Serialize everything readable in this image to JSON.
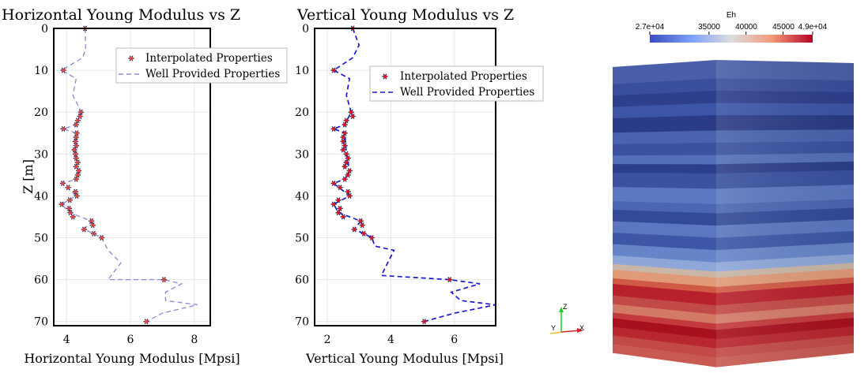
{
  "chart_data": [
    {
      "type": "scatter",
      "title": "Horizontal Young Modulus vs Z",
      "xlabel": "Horizontal Young Modulus [Mpsi]",
      "ylabel": "Z [m]",
      "xlim": [
        3.6,
        8.5
      ],
      "ylim": [
        71,
        0
      ],
      "y_inverted": true,
      "xticks": [
        4,
        6,
        8
      ],
      "yticks": [
        0,
        10,
        20,
        30,
        40,
        50,
        60,
        70
      ],
      "grid": true,
      "legend_position": "top-right",
      "colors": {
        "line": "#8a8ad4",
        "marker": "#e8412f",
        "marker_edge": "#2a2a60"
      },
      "series": [
        {
          "name": "Interpolated Properties",
          "style": "markers",
          "points": [
            [
              4.58,
              0
            ],
            [
              3.9,
              10
            ],
            [
              4.45,
              20
            ],
            [
              4.42,
              21
            ],
            [
              4.35,
              22
            ],
            [
              4.3,
              23
            ],
            [
              3.9,
              24
            ],
            [
              4.32,
              25
            ],
            [
              4.3,
              26
            ],
            [
              4.28,
              27
            ],
            [
              4.3,
              28
            ],
            [
              4.25,
              29
            ],
            [
              4.28,
              30
            ],
            [
              4.3,
              31
            ],
            [
              4.35,
              32
            ],
            [
              4.3,
              33
            ],
            [
              4.38,
              34
            ],
            [
              4.35,
              35
            ],
            [
              4.3,
              36
            ],
            [
              3.88,
              37
            ],
            [
              4.05,
              38
            ],
            [
              4.28,
              39
            ],
            [
              4.32,
              40
            ],
            [
              4.1,
              41
            ],
            [
              3.85,
              42
            ],
            [
              4.08,
              43
            ],
            [
              4.12,
              44
            ],
            [
              4.2,
              45
            ],
            [
              4.78,
              46
            ],
            [
              4.82,
              47
            ],
            [
              4.55,
              48
            ],
            [
              4.85,
              49
            ],
            [
              5.1,
              50
            ],
            [
              7.05,
              60
            ],
            [
              6.5,
              70
            ]
          ]
        },
        {
          "name": "Well Provided Properties",
          "style": "dashed-line",
          "points": [
            [
              4.58,
              0
            ],
            [
              4.6,
              5
            ],
            [
              4.5,
              7
            ],
            [
              3.85,
              10
            ],
            [
              4.3,
              12
            ],
            [
              4.2,
              16
            ],
            [
              4.4,
              19
            ],
            [
              4.45,
              20
            ],
            [
              4.3,
              23
            ],
            [
              3.9,
              24
            ],
            [
              4.3,
              25
            ],
            [
              4.28,
              30
            ],
            [
              4.38,
              34
            ],
            [
              4.3,
              36
            ],
            [
              3.88,
              37
            ],
            [
              4.3,
              40
            ],
            [
              3.85,
              42
            ],
            [
              4.1,
              44
            ],
            [
              4.78,
              46
            ],
            [
              4.55,
              48
            ],
            [
              4.85,
              49
            ],
            [
              5.1,
              50
            ],
            [
              5.3,
              53
            ],
            [
              5.7,
              56
            ],
            [
              5.3,
              60
            ],
            [
              7.05,
              60
            ],
            [
              7.6,
              61
            ],
            [
              7.1,
              63
            ],
            [
              7.1,
              65
            ],
            [
              8.1,
              66
            ],
            [
              7.0,
              68
            ],
            [
              6.5,
              70
            ]
          ]
        }
      ]
    },
    {
      "type": "scatter",
      "title": "Vertical Young Modulus vs Z",
      "xlabel": "Vertical Young Modulus [Mpsi]",
      "ylabel": "",
      "xlim": [
        1.6,
        7.3
      ],
      "ylim": [
        71,
        0
      ],
      "y_inverted": true,
      "xticks": [
        2,
        4,
        6
      ],
      "yticks": [
        0,
        10,
        20,
        30,
        40,
        50,
        60,
        70
      ],
      "grid": true,
      "legend_position": "top-right",
      "colors": {
        "line": "#1a1ad0",
        "marker": "#e8101a",
        "marker_edge": "#2a2a60"
      },
      "series": [
        {
          "name": "Interpolated Properties",
          "style": "markers",
          "points": [
            [
              2.8,
              0
            ],
            [
              2.2,
              10
            ],
            [
              2.75,
              20
            ],
            [
              2.8,
              21
            ],
            [
              2.6,
              22
            ],
            [
              2.55,
              23
            ],
            [
              2.2,
              24
            ],
            [
              2.55,
              25
            ],
            [
              2.5,
              26
            ],
            [
              2.5,
              27
            ],
            [
              2.55,
              28
            ],
            [
              2.5,
              29
            ],
            [
              2.6,
              30
            ],
            [
              2.65,
              31
            ],
            [
              2.6,
              32
            ],
            [
              2.55,
              33
            ],
            [
              2.7,
              34
            ],
            [
              2.65,
              35
            ],
            [
              2.55,
              36
            ],
            [
              2.2,
              37
            ],
            [
              2.4,
              38
            ],
            [
              2.65,
              39
            ],
            [
              2.7,
              40
            ],
            [
              2.35,
              41
            ],
            [
              2.2,
              42
            ],
            [
              2.4,
              43
            ],
            [
              2.35,
              44
            ],
            [
              2.5,
              45
            ],
            [
              3.05,
              46
            ],
            [
              3.1,
              47
            ],
            [
              2.85,
              48
            ],
            [
              3.15,
              49
            ],
            [
              3.4,
              50
            ],
            [
              5.85,
              60
            ],
            [
              5.05,
              70
            ]
          ]
        },
        {
          "name": "Well Provided Properties",
          "style": "dashed-line",
          "points": [
            [
              2.8,
              0
            ],
            [
              3.0,
              4
            ],
            [
              2.8,
              7
            ],
            [
              2.2,
              10
            ],
            [
              2.7,
              12
            ],
            [
              2.6,
              16
            ],
            [
              2.75,
              20
            ],
            [
              2.55,
              23
            ],
            [
              2.2,
              24
            ],
            [
              2.55,
              25
            ],
            [
              2.6,
              30
            ],
            [
              2.7,
              34
            ],
            [
              2.55,
              36
            ],
            [
              2.2,
              37
            ],
            [
              2.7,
              40
            ],
            [
              2.2,
              42
            ],
            [
              2.35,
              44
            ],
            [
              3.05,
              46
            ],
            [
              2.85,
              48
            ],
            [
              3.15,
              49
            ],
            [
              3.4,
              50
            ],
            [
              3.5,
              52
            ],
            [
              4.1,
              53
            ],
            [
              3.7,
              59
            ],
            [
              5.85,
              60
            ],
            [
              6.8,
              61
            ],
            [
              5.9,
              63
            ],
            [
              6.2,
              65
            ],
            [
              7.3,
              66
            ],
            [
              6.0,
              68
            ],
            [
              5.05,
              70
            ]
          ]
        }
      ]
    }
  ],
  "render3d": {
    "colorbar": {
      "title": "Eh",
      "labels": [
        "2.7e+04",
        "35000",
        "40000",
        "45000",
        "4.9e+04"
      ],
      "values": [
        27000,
        35000,
        40000,
        45000,
        49000
      ],
      "range": [
        27000,
        49000
      ],
      "colors": [
        "#3b4cc0",
        "#8db0fe",
        "#dddddd",
        "#f49a7b",
        "#b40426"
      ]
    },
    "axes": {
      "x": "X",
      "y": "Y",
      "z": "Z"
    }
  }
}
